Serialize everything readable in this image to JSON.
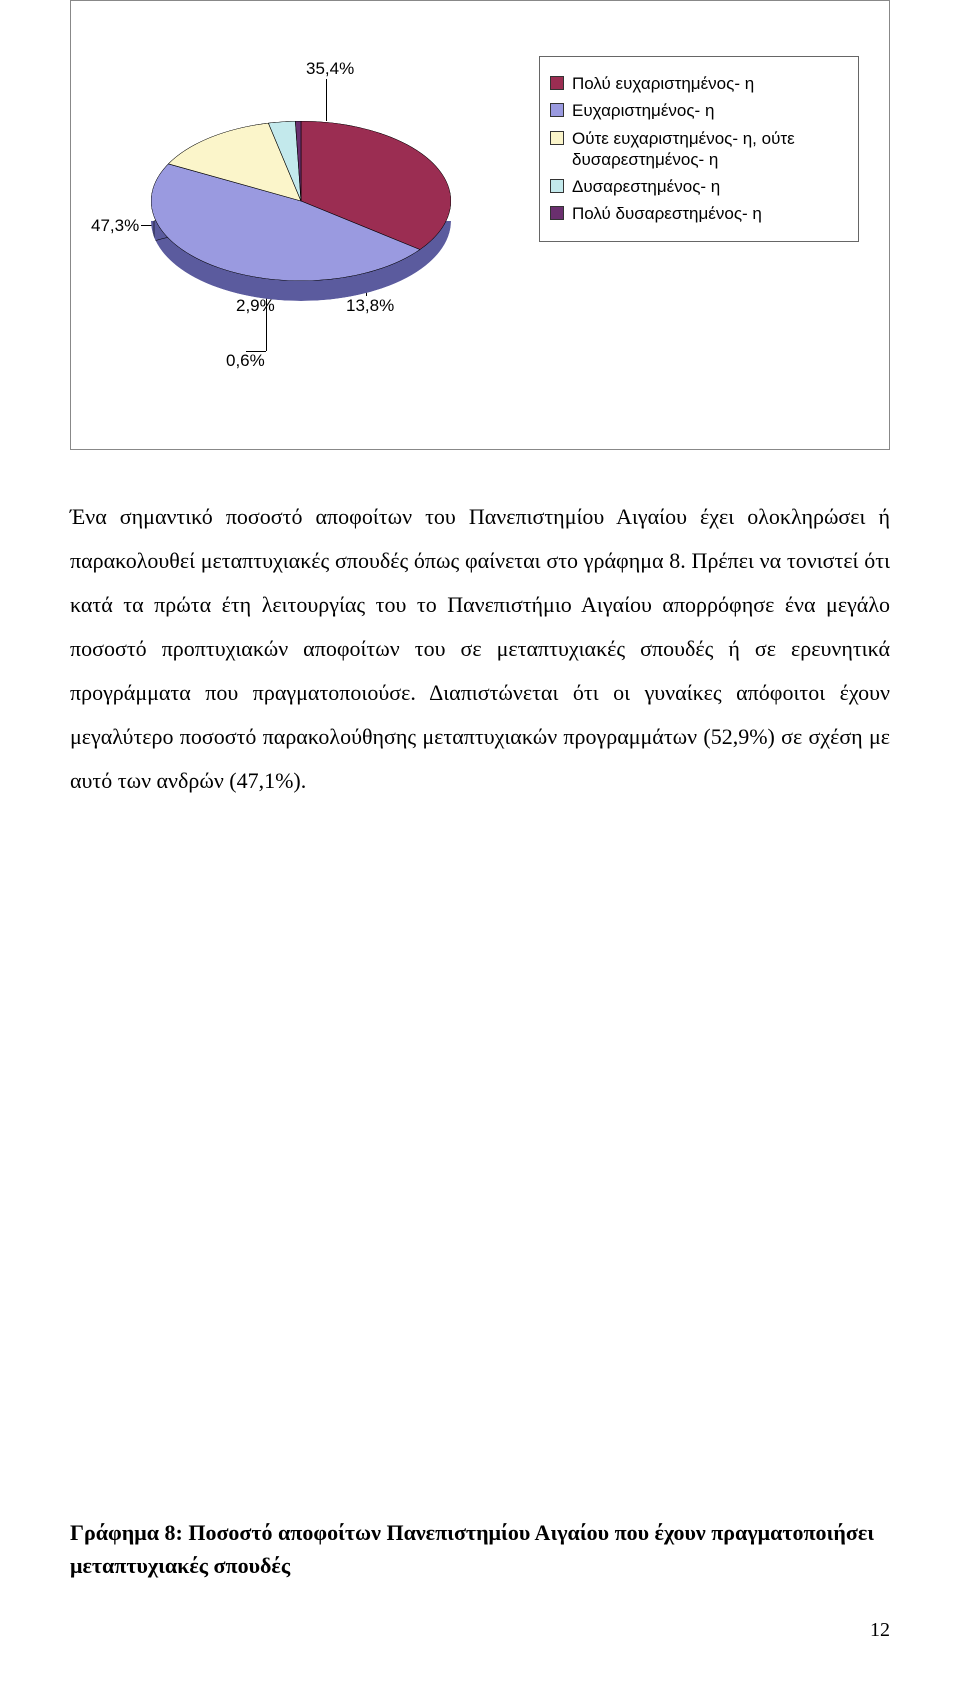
{
  "chart": {
    "type": "pie",
    "background_color": "#ffffff",
    "border_color": "#888888",
    "slices": [
      {
        "label": "Πολύ ευχαριστημένος- η",
        "value": 35.4,
        "display": "35,4%",
        "color": "#9b2d52",
        "side_color": "#6a1e38"
      },
      {
        "label": "Ευχαριστημένος- η",
        "value": 47.3,
        "display": "47,3%",
        "color": "#9a9ae0",
        "side_color": "#5b5b9e"
      },
      {
        "label": "Ούτε ευχαριστημένος- η, ούτε δυσαρεστημένος- η",
        "value": 13.8,
        "display": "13,8%",
        "color": "#fbf5ca",
        "side_color": "#cfc997"
      },
      {
        "label": "Δυσαρεστημένος- η",
        "value": 2.9,
        "display": "2,9%",
        "color": "#c3e9ec",
        "side_color": "#8bb9bc"
      },
      {
        "label": "Πολύ δυσαρεστημένος- η",
        "value": 0.6,
        "display": "0,6%",
        "color": "#6a2f6e",
        "side_color": "#451e48"
      }
    ],
    "label_fontsize": 17,
    "legend_fontsize": 17,
    "legend_border": "#666666"
  },
  "paragraph": "Ένα σημαντικό ποσοστό αποφοίτων του Πανεπιστημίου Αιγαίου έχει ολοκληρώσει ή παρακολουθεί μεταπτυχιακές σπουδές όπως φαίνεται στο γράφημα 8. Πρέπει να τονιστεί ότι κατά τα πρώτα έτη λειτουργίας του το Πανεπιστήμιο Αιγαίου απορρόφησε ένα μεγάλο ποσοστό προπτυχιακών αποφοίτων του σε μεταπτυχιακές σπουδές ή σε ερευνητικά προγράμματα που πραγματοποιούσε. Διαπιστώνεται ότι οι γυναίκες απόφοιτοι έχουν μεγαλύτερο ποσοστό παρακολούθησης μεταπτυχιακών προγραμμάτων (52,9%) σε σχέση με αυτό των ανδρών (47,1%).",
  "caption": "Γράφημα 8: Ποσοστό αποφοίτων Πανεπιστημίου Αιγαίου που έχουν πραγματοποιήσει μεταπτυχιακές σπουδές",
  "page_number": "12",
  "body_fontsize": 22,
  "body_lineheight": 2.0
}
